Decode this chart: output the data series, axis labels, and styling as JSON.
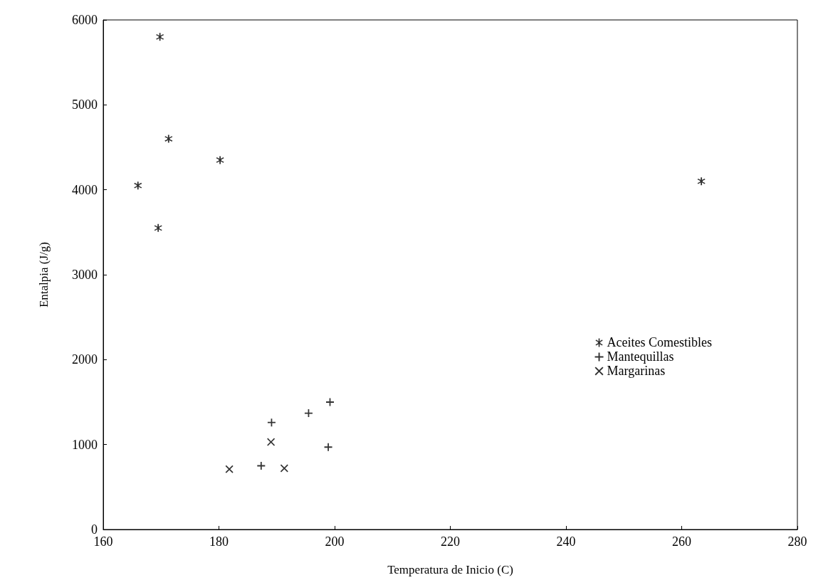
{
  "chart_data": {
    "type": "scatter",
    "xlabel": "Temperatura de Inicio (C)",
    "ylabel": "Entalpia (J/g)",
    "xlim": [
      160,
      280
    ],
    "xticks": [
      160,
      180,
      200,
      220,
      240,
      260,
      280
    ],
    "ylim": [
      0,
      6000
    ],
    "yticks": [
      0,
      1000,
      2000,
      3000,
      4000,
      5000,
      6000
    ],
    "grid": false,
    "legend": "right",
    "series": [
      {
        "name": "Aceites Comestibles",
        "color": "#000000",
        "marker": "star",
        "x": [
          169.8,
          171.3,
          180.2,
          166.0,
          169.5,
          263.4
        ],
        "values": [
          5800,
          4600,
          4350,
          4050,
          3550,
          4100
        ]
      },
      {
        "name": "Mantequillas",
        "color": "#000000",
        "marker": "plus",
        "x": [
          187.3,
          189.1,
          195.5,
          199.2,
          198.9
        ],
        "values": [
          750,
          1260,
          1370,
          1500,
          970
        ]
      },
      {
        "name": "Margarinas",
        "color": "#000000",
        "marker": "cross",
        "x": [
          181.8,
          189.0,
          191.3
        ],
        "values": [
          710,
          1030,
          720
        ]
      }
    ]
  }
}
